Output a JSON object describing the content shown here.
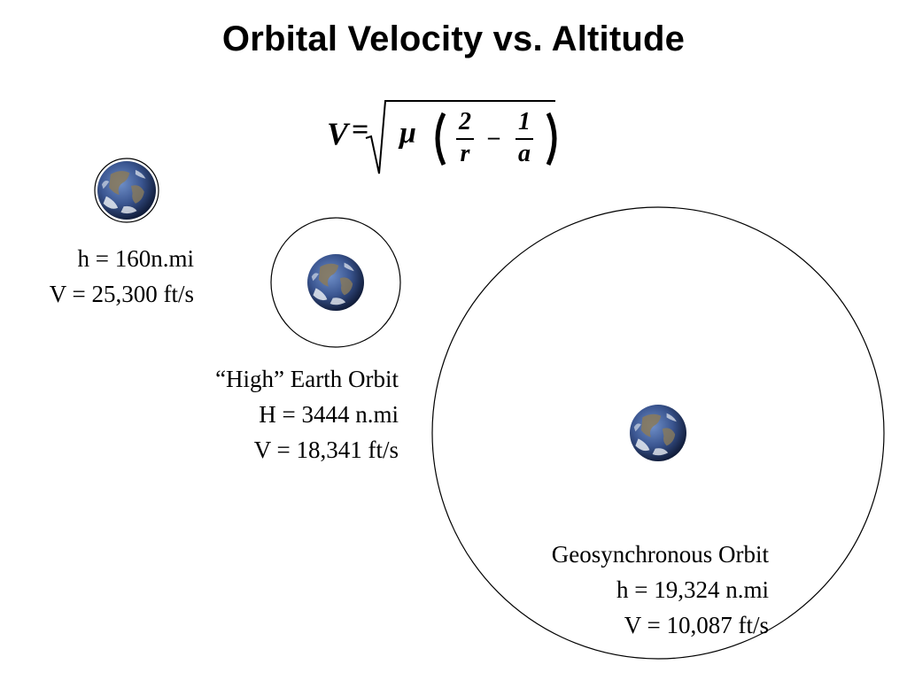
{
  "title": "Orbital Velocity vs. Altitude",
  "formula": {
    "lhs": "V",
    "equals": "=",
    "mu": "μ",
    "num1": "2",
    "den1": "r",
    "minus": "–",
    "num2": "1",
    "den2": "a"
  },
  "orbits": [
    {
      "name": "",
      "altitude": "h = 160n.mi",
      "velocity": "V = 25,300 ft/s"
    },
    {
      "name": "“High” Earth Orbit",
      "altitude": "H = 3444 n.mi",
      "velocity": "V = 18,341 ft/s"
    },
    {
      "name": "Geosynchronous Orbit",
      "altitude": "h = 19,324 n.mi",
      "velocity": "V = 10,087 ft/s"
    }
  ],
  "colors": {
    "ocean_dark": "#1f2f5a",
    "ocean_light": "#4a6aa8",
    "land": "#8a7a5a",
    "cloud": "#e8ecf2"
  }
}
